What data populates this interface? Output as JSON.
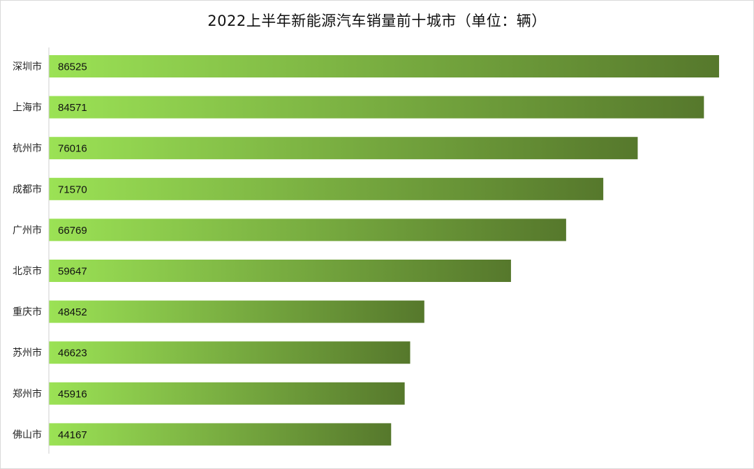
{
  "chart_data": {
    "type": "bar",
    "orientation": "horizontal",
    "title": "2022上半年新能源汽车销量前十城市（单位：辆）",
    "categories": [
      "深圳市",
      "上海市",
      "杭州市",
      "成都市",
      "广州市",
      "北京市",
      "重庆市",
      "苏州市",
      "郑州市",
      "佛山市"
    ],
    "values": [
      86525,
      84571,
      76016,
      71570,
      66769,
      59647,
      48452,
      46623,
      45916,
      44167
    ],
    "xlim": [
      0,
      90000
    ],
    "grid": false,
    "legend": "none",
    "bar_gradient": [
      "#9be255",
      "#56782c"
    ]
  }
}
